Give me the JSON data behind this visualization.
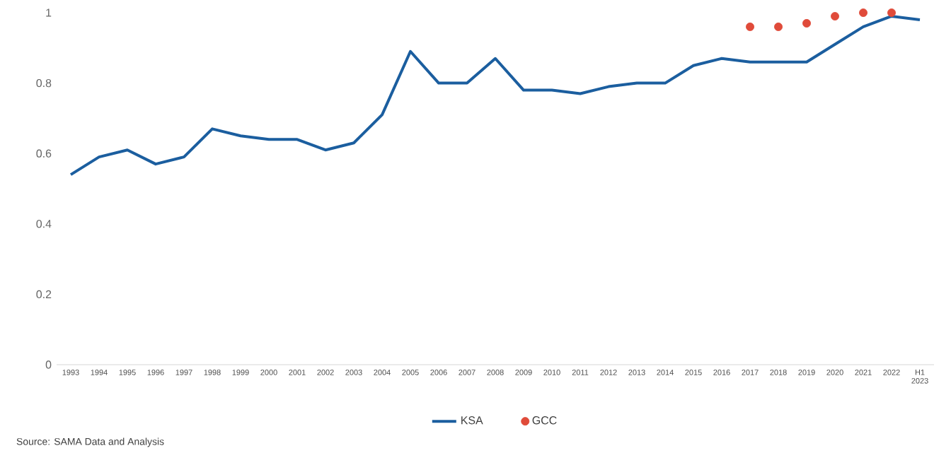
{
  "chart_data": {
    "type": "line",
    "categories": [
      "1993",
      "1994",
      "1995",
      "1996",
      "1997",
      "1998",
      "1999",
      "2000",
      "2001",
      "2002",
      "2003",
      "2004",
      "2005",
      "2006",
      "2007",
      "2008",
      "2009",
      "2010",
      "2011",
      "2012",
      "2013",
      "2014",
      "2015",
      "2016",
      "2017",
      "2018",
      "2019",
      "2020",
      "2021",
      "2022",
      "H1 2023"
    ],
    "series": [
      {
        "name": "KSA",
        "color": "#1b5e9f",
        "marker": "none",
        "values": [
          0.54,
          0.59,
          0.61,
          0.57,
          0.59,
          0.67,
          0.65,
          0.64,
          0.64,
          0.61,
          0.63,
          0.71,
          0.89,
          0.8,
          0.8,
          0.87,
          0.78,
          0.78,
          0.77,
          0.79,
          0.8,
          0.8,
          0.85,
          0.87,
          0.86,
          0.86,
          0.86,
          0.91,
          0.96,
          0.99,
          0.98
        ]
      },
      {
        "name": "GCC",
        "color": "#e04b3a",
        "type": "scatter",
        "marker": "circle",
        "values": [
          null,
          null,
          null,
          null,
          null,
          null,
          null,
          null,
          null,
          null,
          null,
          null,
          null,
          null,
          null,
          null,
          null,
          null,
          null,
          null,
          null,
          null,
          null,
          null,
          0.96,
          0.96,
          0.97,
          0.99,
          1.0,
          1.0,
          null
        ]
      }
    ],
    "ylim": [
      0,
      1
    ],
    "yticks": [
      0,
      0.2,
      0.4,
      0.6,
      0.8,
      1
    ],
    "grid": false,
    "legend": "bottom",
    "annotations": [
      "Source: SAMA Data and Analysis"
    ]
  }
}
